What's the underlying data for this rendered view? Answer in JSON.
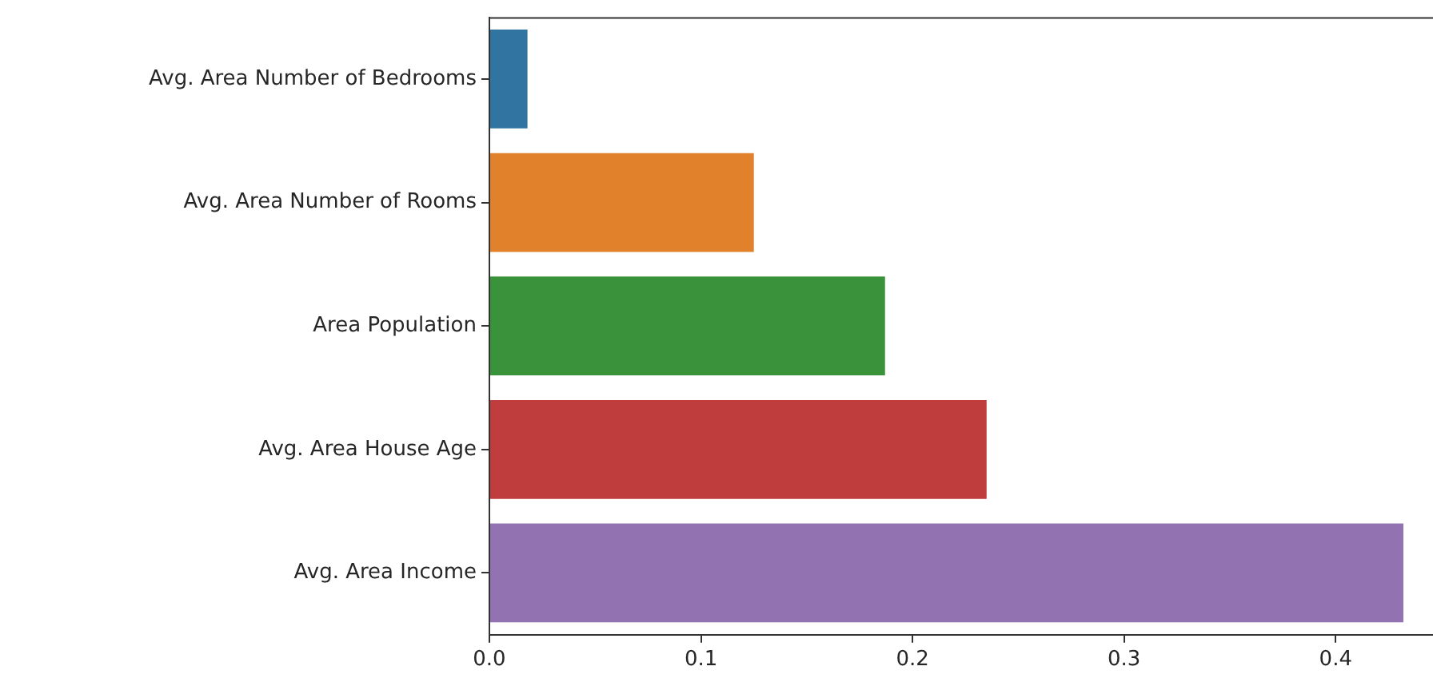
{
  "chart_data": {
    "type": "bar",
    "orientation": "horizontal",
    "categories": [
      "Avg. Area Number of Bedrooms",
      "Avg. Area Number of Rooms",
      "Area Population",
      "Avg. Area House Age",
      "Avg. Area Income"
    ],
    "values": [
      0.018,
      0.125,
      0.187,
      0.235,
      0.432
    ],
    "colors": [
      "#3274a1",
      "#e1812c",
      "#3a923a",
      "#c03d3e",
      "#9372b2"
    ],
    "xlim": [
      0,
      0.446
    ],
    "xticks": [
      {
        "value": 0,
        "label": "0.0"
      },
      0.1,
      0.2,
      0.3,
      0.4
    ],
    "grid": false
  }
}
